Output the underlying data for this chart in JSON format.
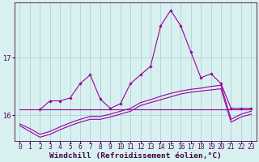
{
  "x": [
    0,
    1,
    2,
    3,
    4,
    5,
    6,
    7,
    8,
    9,
    10,
    11,
    12,
    13,
    14,
    15,
    16,
    17,
    18,
    19,
    20,
    21,
    22,
    23
  ],
  "y_jagged": [
    null,
    null,
    16.1,
    16.25,
    16.25,
    16.3,
    16.55,
    16.7,
    16.28,
    16.12,
    16.2,
    16.55,
    16.7,
    16.85,
    17.55,
    17.82,
    17.55,
    17.1,
    16.65,
    16.72,
    16.55,
    16.12,
    16.12,
    16.12
  ],
  "y_flat": [
    16.1,
    16.1,
    16.1,
    16.1,
    16.1,
    16.1,
    16.1,
    16.1,
    16.1,
    16.1,
    16.1,
    16.1,
    16.1,
    16.1,
    16.1,
    16.1,
    16.1,
    16.1,
    16.1,
    16.1,
    16.1,
    16.1,
    16.1,
    16.1
  ],
  "y_mid": [
    15.85,
    15.77,
    15.67,
    15.72,
    15.8,
    15.87,
    15.93,
    15.98,
    15.98,
    16.02,
    16.07,
    16.12,
    16.22,
    16.27,
    16.33,
    16.38,
    16.42,
    16.45,
    16.47,
    16.5,
    16.52,
    15.93,
    16.02,
    16.07
  ],
  "y_lower": [
    15.82,
    15.72,
    15.62,
    15.67,
    15.75,
    15.82,
    15.88,
    15.93,
    15.93,
    15.97,
    16.02,
    16.07,
    16.17,
    16.22,
    16.27,
    16.32,
    16.37,
    16.4,
    16.42,
    16.44,
    16.46,
    15.88,
    15.97,
    16.02
  ],
  "ylim": [
    15.55,
    17.95
  ],
  "xlim": [
    -0.5,
    23.5
  ],
  "yticks": [
    16,
    17
  ],
  "xticks": [
    0,
    1,
    2,
    3,
    4,
    5,
    6,
    7,
    8,
    9,
    10,
    11,
    12,
    13,
    14,
    15,
    16,
    17,
    18,
    19,
    20,
    21,
    22,
    23
  ],
  "bg_color": "#d8f0f0",
  "grid_color": "#aacaca",
  "line_color": "#990099",
  "xlabel": "Windchill (Refroidissement éolien,°C)",
  "xlabel_fontsize": 6.8,
  "tick_fontsize": 6.0,
  "figsize": [
    3.2,
    2.0
  ],
  "dpi": 100
}
